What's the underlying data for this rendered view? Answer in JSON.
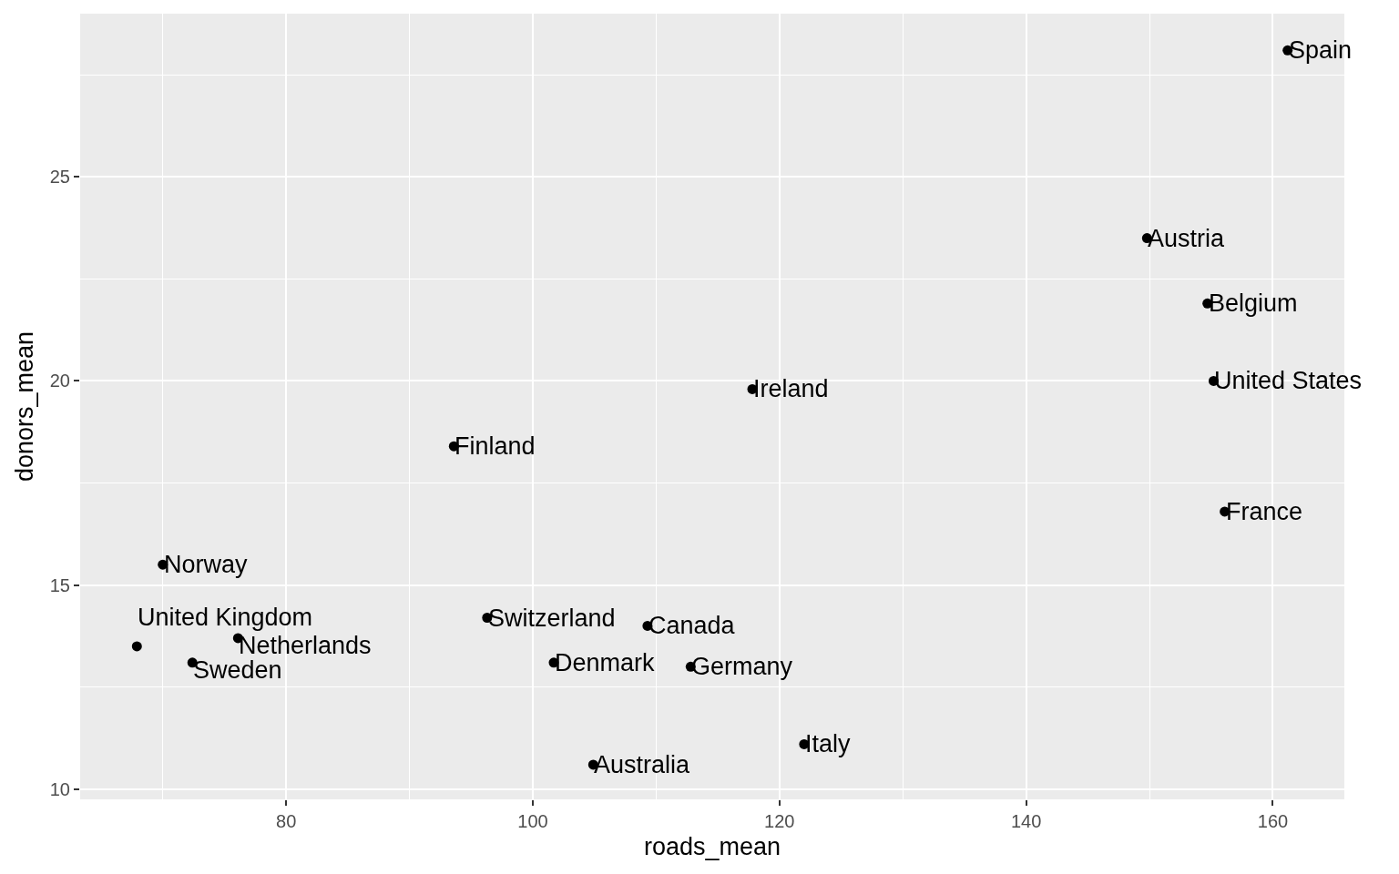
{
  "chart_data": {
    "type": "scatter",
    "xlabel": "roads_mean",
    "ylabel": "donors_mean",
    "x": [
      161.2,
      149.8,
      154.7,
      155.2,
      117.8,
      93.6,
      156.1,
      70.0,
      96.3,
      109.3,
      76.1,
      67.9,
      72.4,
      101.7,
      112.8,
      122.0,
      104.9
    ],
    "series": [
      {
        "color": "#000000",
        "values": [
          28.1,
          23.5,
          21.9,
          20.0,
          19.8,
          18.4,
          16.8,
          15.5,
          14.2,
          14.0,
          13.7,
          13.5,
          13.1,
          13.1,
          13.0,
          11.1,
          10.6
        ]
      }
    ],
    "xlim": [
      63.3,
      165.8
    ],
    "ylim": [
      9.75,
      29.0
    ],
    "xticks": [
      80,
      100,
      120,
      140,
      160
    ],
    "yticks": [
      10,
      15,
      20,
      25
    ],
    "grid": true,
    "marker": "circle",
    "annotations": [
      {
        "text": "Spain",
        "x": 161.2,
        "y": 28.1
      },
      {
        "text": "Austria",
        "x": 149.8,
        "y": 23.5
      },
      {
        "text": "Belgium",
        "x": 154.7,
        "y": 21.9
      },
      {
        "text": "United States",
        "x": 155.2,
        "y": 20.0
      },
      {
        "text": "Ireland",
        "x": 117.8,
        "y": 19.8
      },
      {
        "text": "Finland",
        "x": 93.6,
        "y": 18.4
      },
      {
        "text": "France",
        "x": 156.1,
        "y": 16.8
      },
      {
        "text": "Norway",
        "x": 70.0,
        "y": 15.5
      },
      {
        "text": "Switzerland",
        "x": 96.3,
        "y": 14.2
      },
      {
        "text": "Canada",
        "x": 109.3,
        "y": 14.0
      },
      {
        "text": "Netherlands",
        "x": 76.1,
        "y": 13.7
      },
      {
        "text": "United Kingdom",
        "x": 67.9,
        "y": 13.5
      },
      {
        "text": "Sweden",
        "x": 72.4,
        "y": 13.1
      },
      {
        "text": "Denmark",
        "x": 101.7,
        "y": 13.1
      },
      {
        "text": "Germany",
        "x": 112.8,
        "y": 13.0
      },
      {
        "text": "Italy",
        "x": 122.0,
        "y": 11.1
      },
      {
        "text": "Australia",
        "x": 104.9,
        "y": 10.6
      }
    ]
  }
}
